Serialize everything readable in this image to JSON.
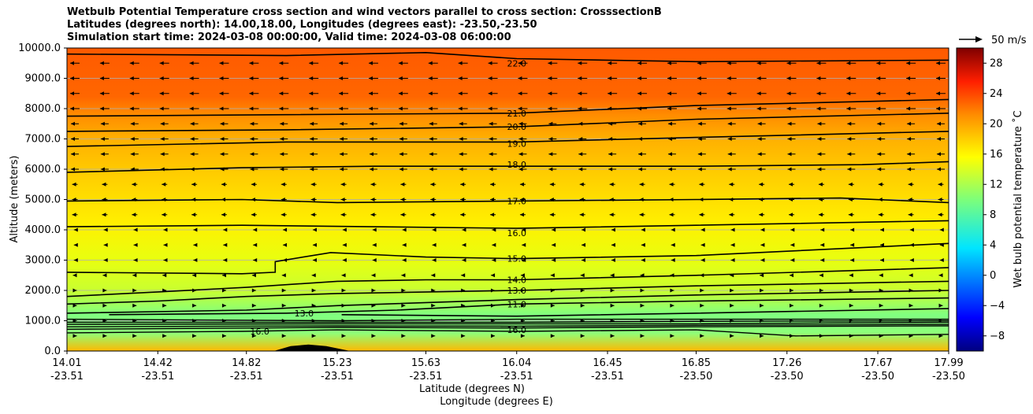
{
  "chart_data": {
    "type": "heatmap",
    "title_lines": [
      "Wetbulb Potential Temperature cross section and wind vectors parallel to cross section: CrosssectionB",
      "Latitudes (degrees north): 14.00,18.00, Longitudes (degrees east): -23.50,-23.50",
      "Simulation start time: 2024-03-08 00:00:00, Valid time: 2024-03-08 06:00:00"
    ],
    "ylabel": "Altitude (meters)",
    "xlabel_lat": "Latitude (degrees N)",
    "xlabel_lon": "Longitude (degrees E)",
    "ylim": [
      0,
      10000
    ],
    "y_ticks": [
      "0.0",
      "1000.0",
      "2000.0",
      "3000.0",
      "4000.0",
      "5000.0",
      "6000.0",
      "7000.0",
      "8000.0",
      "9000.0",
      "10000.0"
    ],
    "x_ticks_lat": [
      "14.01",
      "14.42",
      "14.82",
      "15.23",
      "15.63",
      "16.04",
      "16.45",
      "16.85",
      "17.26",
      "17.67",
      "17.99"
    ],
    "x_ticks_lon": [
      "-23.51",
      "-23.51",
      "-23.51",
      "-23.51",
      "-23.51",
      "-23.51",
      "-23.51",
      "-23.50",
      "-23.50",
      "-23.50",
      "-23.50"
    ],
    "grid": "horizontal",
    "colorbar": {
      "label": "Wet bulb potential temperature ˚C",
      "range": [
        -10,
        30
      ],
      "ticks": [
        "−8",
        "−4",
        "0",
        "4",
        "8",
        "12",
        "16",
        "20",
        "24",
        "28"
      ],
      "colormap": "jet"
    },
    "wind_key": {
      "label": "50 m/s"
    },
    "contour_labels": [
      {
        "text": "22.0",
        "x": 16.04,
        "y": 9500
      },
      {
        "text": "21.0",
        "x": 16.04,
        "y": 7850
      },
      {
        "text": "20.0",
        "x": 16.04,
        "y": 7400
      },
      {
        "text": "19.0",
        "x": 16.04,
        "y": 6850
      },
      {
        "text": "18.0",
        "x": 16.04,
        "y": 6150
      },
      {
        "text": "17.0",
        "x": 16.04,
        "y": 4950
      },
      {
        "text": "16.0",
        "x": 16.04,
        "y": 3900
      },
      {
        "text": "15.0",
        "x": 16.04,
        "y": 3050
      },
      {
        "text": "14.0",
        "x": 16.04,
        "y": 2350
      },
      {
        "text": "13.0",
        "x": 16.04,
        "y": 2000
      },
      {
        "text": "11.0",
        "x": 16.04,
        "y": 1550
      },
      {
        "text": "16.0",
        "x": 16.04,
        "y": 700
      },
      {
        "text": "13.0",
        "x": 15.08,
        "y": 1250
      },
      {
        "text": "16.0",
        "x": 14.88,
        "y": 650
      }
    ],
    "contour_lines": [
      {
        "value": 22,
        "points": [
          [
            14.01,
            9800
          ],
          [
            15.0,
            9750
          ],
          [
            15.63,
            9850
          ],
          [
            16.04,
            9650
          ],
          [
            16.85,
            9550
          ],
          [
            17.99,
            9600
          ]
        ]
      },
      {
        "value": 21,
        "points": [
          [
            14.01,
            7750
          ],
          [
            15.0,
            7800
          ],
          [
            16.04,
            7850
          ],
          [
            16.85,
            8100
          ],
          [
            17.99,
            8300
          ]
        ]
      },
      {
        "value": 20,
        "points": [
          [
            14.01,
            7250
          ],
          [
            15.0,
            7300
          ],
          [
            16.04,
            7400
          ],
          [
            16.85,
            7650
          ],
          [
            17.99,
            7850
          ]
        ]
      },
      {
        "value": 19,
        "points": [
          [
            14.01,
            6750
          ],
          [
            15.0,
            6900
          ],
          [
            16.04,
            6900
          ],
          [
            16.85,
            7050
          ],
          [
            17.99,
            7250
          ]
        ]
      },
      {
        "value": 18,
        "points": [
          [
            14.01,
            5900
          ],
          [
            14.8,
            6050
          ],
          [
            15.4,
            6100
          ],
          [
            16.04,
            6100
          ],
          [
            16.85,
            6100
          ],
          [
            17.6,
            6150
          ],
          [
            17.99,
            6250
          ]
        ]
      },
      {
        "value": 17,
        "points": [
          [
            14.01,
            4950
          ],
          [
            14.8,
            5000
          ],
          [
            15.23,
            4900
          ],
          [
            16.04,
            4950
          ],
          [
            16.85,
            5000
          ],
          [
            17.5,
            5050
          ],
          [
            17.99,
            4900
          ]
        ]
      },
      {
        "value": 16,
        "points": [
          [
            14.01,
            4100
          ],
          [
            14.8,
            4150
          ],
          [
            16.04,
            4050
          ],
          [
            16.85,
            4150
          ],
          [
            17.99,
            4300
          ]
        ]
      },
      {
        "value": 15,
        "points": [
          [
            14.01,
            2600
          ],
          [
            14.8,
            2550
          ],
          [
            14.95,
            2600
          ],
          [
            14.95,
            2950
          ],
          [
            15.2,
            3250
          ],
          [
            15.63,
            3100
          ],
          [
            16.04,
            3050
          ],
          [
            16.85,
            3150
          ],
          [
            17.99,
            3550
          ]
        ]
      },
      {
        "value": 14,
        "points": [
          [
            14.01,
            1800
          ],
          [
            14.42,
            1950
          ],
          [
            14.82,
            2100
          ],
          [
            15.23,
            2300
          ],
          [
            15.63,
            2350
          ],
          [
            16.04,
            2350
          ],
          [
            16.85,
            2500
          ],
          [
            17.99,
            2750
          ]
        ]
      },
      {
        "value": 13,
        "points": [
          [
            14.01,
            1550
          ],
          [
            14.42,
            1650
          ],
          [
            14.82,
            1800
          ],
          [
            15.23,
            1900
          ],
          [
            16.04,
            2000
          ],
          [
            16.85,
            2150
          ],
          [
            17.99,
            2300
          ]
        ]
      },
      {
        "value": 12,
        "points": [
          [
            14.01,
            1250
          ],
          [
            14.82,
            1350
          ],
          [
            15.23,
            1500
          ],
          [
            16.04,
            1700
          ],
          [
            16.85,
            1850
          ],
          [
            17.99,
            2000
          ]
        ]
      },
      {
        "value": 11,
        "points": [
          [
            14.2,
            1200
          ],
          [
            15.0,
            1250
          ],
          [
            15.5,
            1350
          ],
          [
            16.04,
            1550
          ],
          [
            16.85,
            1650
          ],
          [
            17.99,
            1750
          ]
        ]
      },
      {
        "value": 10,
        "points": [
          [
            15.25,
            1200
          ],
          [
            16.04,
            1150
          ],
          [
            16.85,
            1250
          ],
          [
            17.99,
            1400
          ]
        ]
      }
    ],
    "inversion_lines": [
      {
        "points": [
          [
            14.01,
            1050
          ],
          [
            15.23,
            1000
          ],
          [
            16.04,
            1050
          ],
          [
            16.85,
            1050
          ],
          [
            17.99,
            1050
          ]
        ]
      },
      {
        "points": [
          [
            14.01,
            950
          ],
          [
            15.23,
            950
          ],
          [
            16.04,
            950
          ],
          [
            16.85,
            980
          ],
          [
            17.99,
            1000
          ]
        ]
      },
      {
        "points": [
          [
            14.01,
            880
          ],
          [
            15.23,
            900
          ],
          [
            16.04,
            900
          ],
          [
            16.85,
            900
          ],
          [
            17.99,
            950
          ]
        ]
      },
      {
        "points": [
          [
            14.01,
            800
          ],
          [
            15.23,
            830
          ],
          [
            16.04,
            820
          ],
          [
            16.85,
            850
          ],
          [
            17.99,
            880
          ]
        ]
      },
      {
        "points": [
          [
            14.01,
            720
          ],
          [
            15.23,
            780
          ],
          [
            16.04,
            760
          ],
          [
            16.85,
            800
          ],
          [
            17.99,
            830
          ]
        ]
      },
      {
        "points": [
          [
            14.01,
            600
          ],
          [
            14.8,
            650
          ],
          [
            15.23,
            700
          ],
          [
            16.04,
            650
          ],
          [
            16.85,
            700
          ],
          [
            17.3,
            500
          ],
          [
            17.99,
            550
          ]
        ]
      }
    ],
    "terrain": {
      "points": [
        [
          14.95,
          0
        ],
        [
          15.02,
          150
        ],
        [
          15.1,
          200
        ],
        [
          15.18,
          150
        ],
        [
          15.28,
          0
        ]
      ]
    }
  }
}
